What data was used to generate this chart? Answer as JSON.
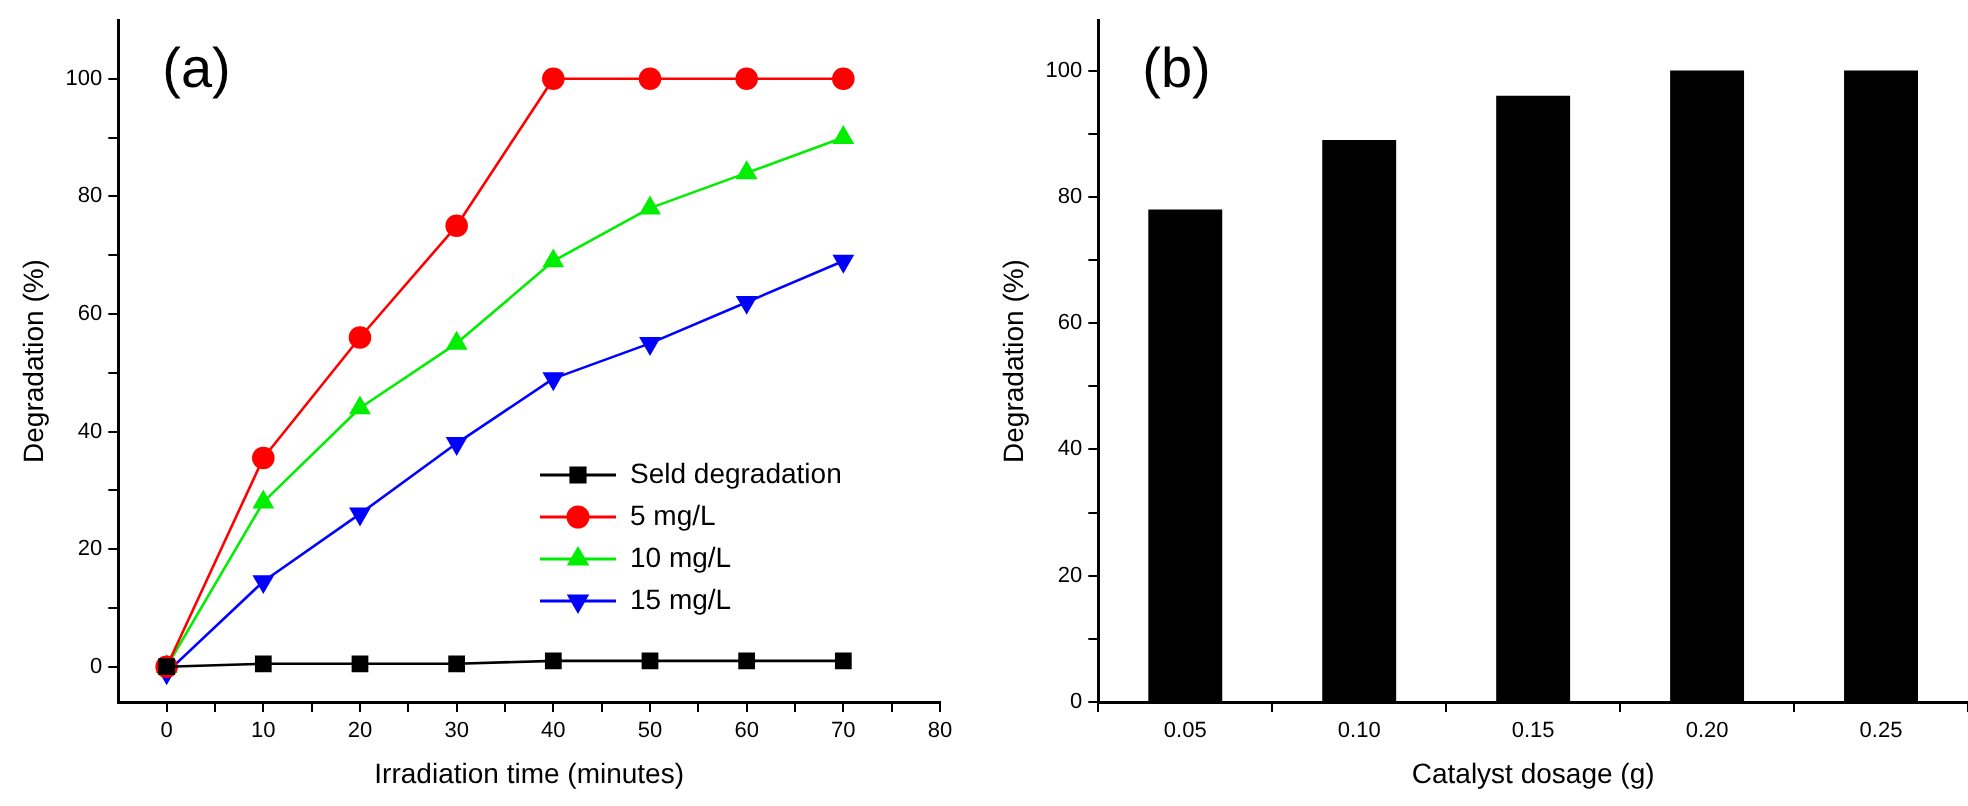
{
  "chart_data": [
    {
      "type": "line",
      "title": "(a)",
      "xlabel": "Irradiation time (minutes)",
      "ylabel": "Degradation (%)",
      "x": [
        0,
        10,
        20,
        30,
        40,
        50,
        60,
        70
      ],
      "series": [
        {
          "name": "Seld degradation",
          "color": "#000000",
          "marker": "square",
          "values": [
            0,
            0.5,
            0.5,
            0.5,
            1,
            1,
            1,
            1
          ]
        },
        {
          "name": "5 mg/L",
          "color": "#ff0000",
          "marker": "circle",
          "values": [
            0,
            35.5,
            56,
            75,
            100,
            100,
            100,
            100
          ]
        },
        {
          "name": "10 mg/L",
          "color": "#00ee00",
          "marker": "triangle",
          "values": [
            0,
            28,
            44,
            55,
            69,
            78,
            84,
            90
          ]
        },
        {
          "name": "15 mg/L",
          "color": "#0000ff",
          "marker": "triangle-down",
          "values": [
            -1,
            14.5,
            26,
            38,
            49,
            55,
            62,
            69
          ]
        }
      ],
      "xlim": [
        -5,
        80
      ],
      "xticks": [
        0,
        {
          "value": 5,
          "label": null
        },
        10,
        {
          "value": 15,
          "label": null
        },
        20,
        {
          "value": 25,
          "label": null
        },
        30,
        {
          "value": 35,
          "label": null
        },
        40,
        {
          "value": 45,
          "label": null
        },
        50,
        {
          "value": 55,
          "label": null
        },
        60,
        {
          "value": 65,
          "label": null
        },
        70,
        {
          "value": 75,
          "label": null
        },
        80
      ],
      "ylim": [
        -6,
        110
      ],
      "yticks": [
        0,
        {
          "value": 10,
          "label": null
        },
        20,
        {
          "value": 30,
          "label": null
        },
        40,
        {
          "value": 50,
          "label": null
        },
        60,
        {
          "value": 70,
          "label": null
        },
        80,
        {
          "value": 90,
          "label": null
        },
        100
      ],
      "grid": false,
      "legend": "bottom right",
      "line_style": "solid"
    },
    {
      "type": "bar",
      "title": "(b)",
      "xlabel": "Catalyst dosage (g)",
      "ylabel": "Degradation (%)",
      "categories": [
        "0.05",
        "0.10",
        "0.15",
        "0.20",
        "0.25"
      ],
      "values": [
        78,
        89,
        96,
        100,
        100
      ],
      "color": "#000000",
      "ylim": [
        0,
        108
      ],
      "yticks": [
        0,
        {
          "value": 10,
          "label": null
        },
        20,
        {
          "value": 30,
          "label": null
        },
        40,
        {
          "value": 50,
          "label": null
        },
        60,
        {
          "value": 70,
          "label": null
        },
        80,
        {
          "value": 90,
          "label": null
        },
        100
      ],
      "grid": false,
      "legend": false
    }
  ]
}
